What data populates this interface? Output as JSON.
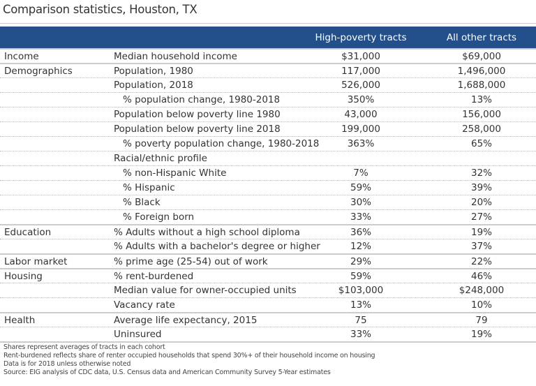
{
  "title": "Comparison statistics, Houston, TX",
  "columns": [
    "High-poverty tracts",
    "All other tracts"
  ],
  "colors": {
    "header": "#23508a"
  },
  "rows": [
    {
      "group": "Income",
      "metric": "Median household income",
      "high": "$31,000",
      "other": "$69,000",
      "first": true
    },
    {
      "group": "Demographics",
      "metric": "Population, 1980",
      "high": "117,000",
      "other": "1,496,000",
      "first": true
    },
    {
      "group": "",
      "metric": "Population, 2018",
      "high": "526,000",
      "other": "1,688,000"
    },
    {
      "group": "",
      "metric": "% population change, 1980-2018",
      "high": "350%",
      "other": "13%",
      "indent": true
    },
    {
      "group": "",
      "metric": "Population below poverty line 1980",
      "high": "43,000",
      "other": "156,000"
    },
    {
      "group": "",
      "metric": "Population below poverty line 2018",
      "high": "199,000",
      "other": "258,000"
    },
    {
      "group": "",
      "metric": "% poverty population change, 1980-2018",
      "high": "363%",
      "other": "65%",
      "indent": true
    },
    {
      "group": "",
      "metric": "Racial/ethnic profile",
      "high": "",
      "other": ""
    },
    {
      "group": "",
      "metric": "% non-Hispanic White",
      "high": "7%",
      "other": "32%",
      "indent": true
    },
    {
      "group": "",
      "metric": "% Hispanic",
      "high": "59%",
      "other": "39%",
      "indent": true
    },
    {
      "group": "",
      "metric": "% Black",
      "high": "30%",
      "other": "20%",
      "indent": true
    },
    {
      "group": "",
      "metric": "% Foreign born",
      "high": "33%",
      "other": "27%",
      "indent": true
    },
    {
      "group": "Education",
      "metric": "% Adults without a high school diploma",
      "high": "36%",
      "other": "19%",
      "first": true
    },
    {
      "group": "",
      "metric": "% Adults with a bachelor's degree or higher",
      "high": "12%",
      "other": "37%"
    },
    {
      "group": "Labor market",
      "metric": "% prime age (25-54) out of work",
      "high": "29%",
      "other": "22%",
      "first": true
    },
    {
      "group": "Housing",
      "metric": "% rent-burdened",
      "high": "59%",
      "other": "46%",
      "first": true
    },
    {
      "group": "",
      "metric": "Median value for owner-occupied units",
      "high": "$103,000",
      "other": "$248,000"
    },
    {
      "group": "",
      "metric": "Vacancy rate",
      "high": "13%",
      "other": "10%"
    },
    {
      "group": "Health",
      "metric": "Average life expectancy, 2015",
      "high": "75",
      "other": "79",
      "first": true
    },
    {
      "group": "",
      "metric": "Uninsured",
      "high": "33%",
      "other": "19%"
    }
  ],
  "notes": [
    "Shares represent averages of tracts in each cohort",
    "Rent-burdened reflects share of renter occupied households that spend 30%+ of their household income on housing",
    "Data is for 2018 unless otherwise noted",
    "Source: EIG analysis of CDC data, U.S. Census data and American Community Survey 5-Year estimates"
  ]
}
